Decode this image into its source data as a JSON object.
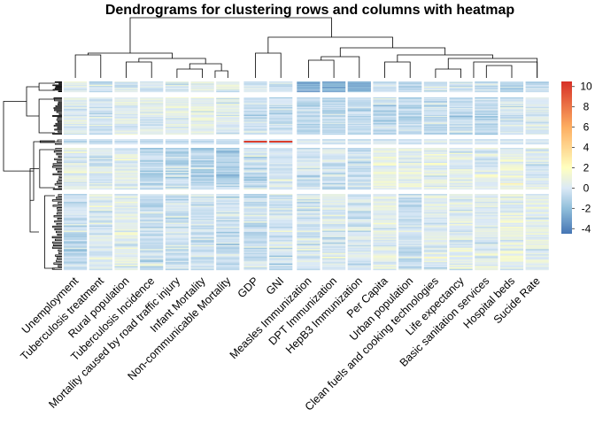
{
  "chart_data": {
    "type": "heatmap",
    "title": "Dendrograms for clustering rows and columns with heatmap",
    "columns": [
      "Unemployment",
      "Tuberculosis treatment",
      "Rural population",
      "Tuberculosis Incidence",
      "Mortality caused by road traffic injury",
      "Infant Mortality",
      "Non-communicable Mortality",
      "GDP",
      "GNI",
      "Measles Immunization",
      "DPT Immunization",
      "HepB3 Immunization",
      "Per Capita",
      "Urban population",
      "Clean fuels and cooking technologies",
      "Life expectancy",
      "Basic sanitation services",
      "Hospital beds",
      "Sucide Rate"
    ],
    "column_groups": [
      7,
      2,
      10
    ],
    "row_groups_approx_rows": [
      14,
      38,
      3,
      33,
      58
    ],
    "color_scale": {
      "min": -4.5,
      "max": 10.5,
      "stops": [
        {
          "value": -4.5,
          "color": "#4575b4"
        },
        {
          "value": -2,
          "color": "#91bfdb"
        },
        {
          "value": 0,
          "color": "#dbe9f6"
        },
        {
          "value": 2,
          "color": "#ffffbf"
        },
        {
          "value": 6,
          "color": "#fdae61"
        },
        {
          "value": 10.5,
          "color": "#d73027"
        }
      ],
      "ticks": [
        10,
        8,
        6,
        4,
        2,
        0,
        -2,
        -4
      ]
    },
    "column_group_means": [
      [
        0.3,
        0.1,
        -1.2,
        0.5,
        -0.6
      ],
      [
        -0.4,
        -0.2,
        -1.0,
        0.0,
        0.1
      ],
      [
        -0.1,
        0.3,
        -0.8,
        0.3,
        0.2
      ],
      [
        -0.2,
        0.1,
        -0.9,
        -0.8,
        -0.5
      ],
      [
        -0.1,
        0.4,
        -0.9,
        -0.6,
        -0.2
      ],
      [
        0.6,
        0.5,
        -0.9,
        -1.0,
        -0.3
      ],
      [
        0.4,
        0.3,
        -0.6,
        -1.2,
        -0.4
      ],
      [
        -0.3,
        -0.4,
        10.0,
        -0.3,
        -0.3
      ],
      [
        -0.3,
        -0.4,
        10.0,
        -0.3,
        -0.3
      ],
      [
        -2.4,
        -0.9,
        0.4,
        -0.2,
        0.0
      ],
      [
        -2.6,
        -0.8,
        0.3,
        -0.1,
        0.0
      ],
      [
        -2.3,
        -0.8,
        0.3,
        -0.2,
        -0.1
      ],
      [
        -0.5,
        -0.6,
        0.2,
        0.7,
        0.5
      ],
      [
        -0.7,
        -0.8,
        0.0,
        0.5,
        -0.4
      ],
      [
        -0.3,
        -0.5,
        0.6,
        0.4,
        0.2
      ],
      [
        -0.4,
        -0.6,
        0.4,
        0.3,
        0.4
      ],
      [
        -0.9,
        -0.7,
        0.3,
        0.3,
        0.3
      ],
      [
        -1.0,
        -0.2,
        0.3,
        0.8,
        0.6
      ],
      [
        -0.5,
        0.2,
        0.2,
        0.2,
        0.5
      ]
    ],
    "grid": false,
    "legend_placement": "right"
  }
}
